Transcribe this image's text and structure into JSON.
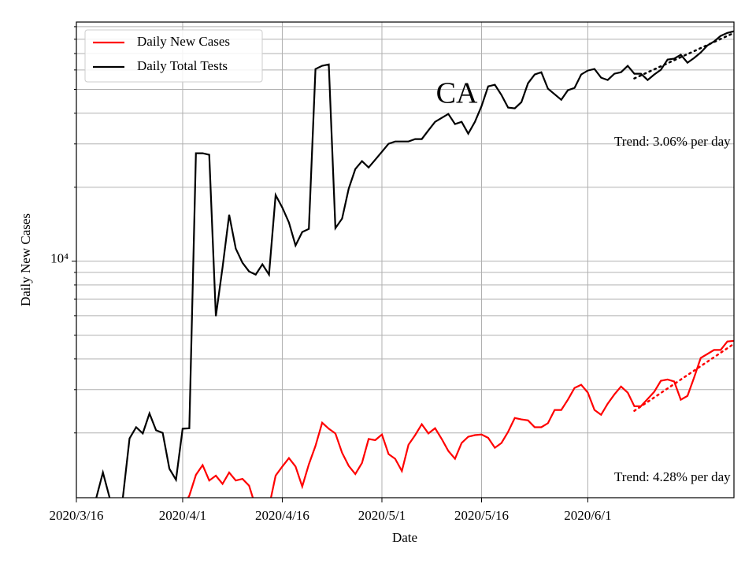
{
  "chart_data": {
    "type": "line",
    "ylabel": "Daily New Cases",
    "xlabel": "Date",
    "log_y": true,
    "grid": true,
    "legend": "upper left",
    "ylim": [
      1090,
      94000
    ],
    "yticks": [
      {
        "value": 10000,
        "label": "10⁴"
      }
    ],
    "yminor_ticks": [
      2000,
      3000,
      4000,
      5000,
      6000,
      7000,
      8000,
      9000,
      20000,
      30000,
      40000,
      50000,
      60000,
      70000,
      80000,
      90000
    ],
    "xticks": [
      "2020/3/16",
      "2020/4/1",
      "2020/4/16",
      "2020/5/1",
      "2020/5/16",
      "2020/6/1"
    ],
    "x": [
      "2020/3/16",
      "2020/3/17",
      "2020/3/18",
      "2020/3/19",
      "2020/3/20",
      "2020/3/21",
      "2020/3/22",
      "2020/3/23",
      "2020/3/24",
      "2020/3/25",
      "2020/3/26",
      "2020/3/27",
      "2020/3/28",
      "2020/3/29",
      "2020/3/30",
      "2020/3/31",
      "2020/4/1",
      "2020/4/2",
      "2020/4/3",
      "2020/4/4",
      "2020/4/5",
      "2020/4/6",
      "2020/4/7",
      "2020/4/8",
      "2020/4/9",
      "2020/4/10",
      "2020/4/11",
      "2020/4/12",
      "2020/4/13",
      "2020/4/14",
      "2020/4/15",
      "2020/4/16",
      "2020/4/17",
      "2020/4/18",
      "2020/4/19",
      "2020/4/20",
      "2020/4/21",
      "2020/4/22",
      "2020/4/23",
      "2020/4/24",
      "2020/4/25",
      "2020/4/26",
      "2020/4/27",
      "2020/4/28",
      "2020/4/29",
      "2020/4/30",
      "2020/5/1",
      "2020/5/2",
      "2020/5/3",
      "2020/5/4",
      "2020/5/5",
      "2020/5/6",
      "2020/5/7",
      "2020/5/8",
      "2020/5/9",
      "2020/5/10",
      "2020/5/11",
      "2020/5/12",
      "2020/5/13",
      "2020/5/14",
      "2020/5/15",
      "2020/5/16",
      "2020/5/17",
      "2020/5/18",
      "2020/5/19",
      "2020/5/20",
      "2020/5/21",
      "2020/5/22",
      "2020/5/23",
      "2020/5/24",
      "2020/5/25",
      "2020/5/26",
      "2020/5/27",
      "2020/5/28",
      "2020/5/29",
      "2020/5/30",
      "2020/5/31",
      "2020/6/1",
      "2020/6/2",
      "2020/6/3",
      "2020/6/4",
      "2020/6/5",
      "2020/6/6",
      "2020/6/7",
      "2020/6/8",
      "2020/6/9",
      "2020/6/10",
      "2020/6/11",
      "2020/6/12",
      "2020/6/13",
      "2020/6/14",
      "2020/6/15",
      "2020/6/16",
      "2020/6/17",
      "2020/6/18",
      "2020/6/19",
      "2020/6/20",
      "2020/6/21",
      "2020/6/22",
      "2020/6/23"
    ],
    "series": [
      {
        "name": "Daily New Cases",
        "color": "#ff0000",
        "values": [
          null,
          null,
          null,
          null,
          null,
          null,
          null,
          null,
          null,
          null,
          null,
          null,
          null,
          null,
          null,
          null,
          1000,
          1110,
          1350,
          1480,
          1280,
          1340,
          1240,
          1380,
          1280,
          1300,
          1220,
          1000,
          1000,
          1000,
          1340,
          1460,
          1580,
          1460,
          1210,
          1490,
          1770,
          2200,
          2080,
          1990,
          1660,
          1470,
          1360,
          1510,
          1890,
          1870,
          1970,
          1640,
          1570,
          1400,
          1790,
          1960,
          2170,
          1990,
          2090,
          1890,
          1690,
          1570,
          1820,
          1930,
          1960,
          1970,
          1910,
          1740,
          1820,
          2020,
          2300,
          2270,
          2250,
          2110,
          2110,
          2190,
          2480,
          2480,
          2730,
          3050,
          3140,
          2920,
          2480,
          2370,
          2630,
          2870,
          3090,
          2920,
          2570,
          2570,
          2750,
          2940,
          3260,
          3300,
          3240,
          2730,
          2830,
          3360,
          4040,
          4190,
          4350,
          4350,
          4710,
          4740
        ]
      },
      {
        "name": "Daily Total Tests",
        "color": "#000000",
        "values": [
          null,
          null,
          null,
          1090,
          1380,
          1090,
          1000,
          1090,
          1900,
          2110,
          1990,
          2400,
          2050,
          2000,
          1430,
          1290,
          2080,
          2090,
          27500,
          27500,
          27100,
          5970,
          9430,
          15450,
          11250,
          9850,
          9080,
          8820,
          9710,
          8820,
          18580,
          16520,
          14360,
          11590,
          13140,
          13530,
          60500,
          62400,
          63200,
          13630,
          14900,
          19720,
          23710,
          25530,
          24050,
          25880,
          27890,
          30030,
          30690,
          30690,
          30690,
          31400,
          31400,
          34040,
          36900,
          38280,
          39720,
          36130,
          36900,
          33040,
          36900,
          42760,
          51450,
          52240,
          47440,
          42170,
          41870,
          44370,
          52980,
          57500,
          58750,
          50350,
          47780,
          45380,
          49610,
          50710,
          57500,
          59660,
          60540,
          55820,
          54590,
          57930,
          58750,
          62370,
          57930,
          57930,
          54590,
          57500,
          60100,
          66150,
          66680,
          69180,
          64220,
          67140,
          70630,
          75510,
          78340,
          82540,
          84920,
          86250
        ]
      }
    ],
    "trends": [
      {
        "color": "#ff0000",
        "x": [
          "2020/6/8",
          "2020/6/23"
        ],
        "values": [
          2460,
          4610
        ]
      },
      {
        "color": "#000000",
        "x": [
          "2020/6/8",
          "2020/6/23"
        ],
        "values": [
          55420,
          84920
        ]
      }
    ],
    "annotations": [
      "CA",
      "Trend: 3.06% per day",
      "Trend: 4.28% per day"
    ]
  }
}
